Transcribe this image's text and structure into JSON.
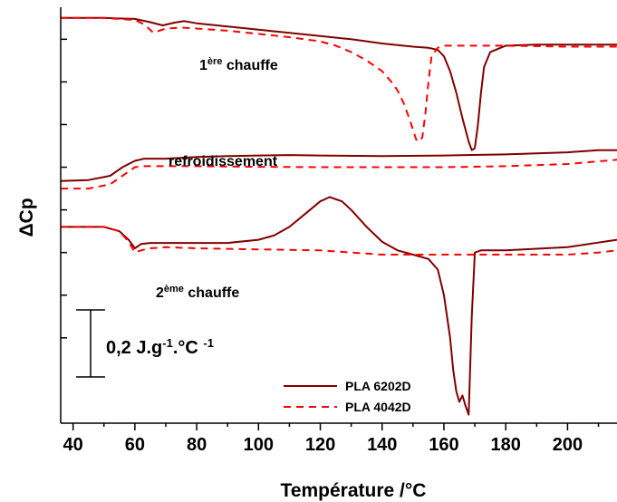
{
  "chart_data": {
    "type": "line",
    "xlabel": "Température /°C",
    "ylabel": "ΔCp",
    "xlim": [
      36,
      216
    ],
    "x_ticks": [
      40,
      60,
      80,
      100,
      120,
      140,
      160,
      180,
      200
    ],
    "y_units": "J.g-1.°C-1 (relative, stacked curves)",
    "ylim": [
      -1.7,
      0.25
    ],
    "y_tick_values": [
      0.1,
      -0.1,
      -0.3,
      -0.5,
      -0.7,
      -0.9,
      -1.1,
      -1.3
    ],
    "y_tick_labels_shown": false,
    "grid": false,
    "legend_position": "bottom-right",
    "scale_bar": {
      "label": "0,2 J.g-1.°C -1",
      "value": 0.2
    },
    "annotations": {
      "first_heating": "1ère chauffe",
      "cooling": "refroidissement",
      "second_heating": "2ème chauffe"
    },
    "series": [
      {
        "name": "PLA 6202D",
        "style": "solid",
        "color": "#800000",
        "segments": [
          {
            "label": "1ère chauffe",
            "x": [
              36,
              50,
              60,
              65,
              69,
              73,
              76,
              80,
              90,
              100,
              110,
              120,
              130,
              140,
              150,
              155,
              158,
              160,
              162,
              164,
              166,
              168,
              169,
              170,
              171,
              172,
              173,
              175,
              180,
              190,
              200,
              216
            ],
            "y": [
              0.2,
              0.2,
              0.195,
              0.18,
              0.165,
              0.178,
              0.185,
              0.175,
              0.16,
              0.145,
              0.13,
              0.115,
              0.1,
              0.08,
              0.065,
              0.06,
              0.05,
              0.02,
              -0.05,
              -0.15,
              -0.27,
              -0.38,
              -0.42,
              -0.41,
              -0.3,
              -0.15,
              -0.03,
              0.04,
              0.07,
              0.075,
              0.075,
              0.075
            ]
          },
          {
            "label": "refroidissement",
            "x": [
              36,
              45,
              52,
              56,
              60,
              63,
              70,
              80,
              90,
              100,
              110,
              120,
              140,
              160,
              180,
              190,
              200,
              210,
              216
            ],
            "y": [
              -0.565,
              -0.56,
              -0.54,
              -0.5,
              -0.47,
              -0.46,
              -0.46,
              -0.452,
              -0.448,
              -0.445,
              -0.443,
              -0.445,
              -0.448,
              -0.445,
              -0.44,
              -0.435,
              -0.43,
              -0.42,
              -0.42
            ]
          },
          {
            "label": "2ème chauffe",
            "x": [
              36,
              50,
              55,
              58,
              60,
              62,
              65,
              70,
              80,
              90,
              100,
              105,
              110,
              115,
              120,
              123,
              127,
              130,
              135,
              140,
              145,
              150,
              155,
              158,
              160,
              162,
              163,
              164,
              165,
              166,
              167,
              168,
              169,
              170,
              172,
              180,
              200,
              216
            ],
            "y": [
              -0.78,
              -0.78,
              -0.8,
              -0.84,
              -0.88,
              -0.86,
              -0.855,
              -0.855,
              -0.855,
              -0.855,
              -0.84,
              -0.82,
              -0.78,
              -0.72,
              -0.66,
              -0.64,
              -0.66,
              -0.7,
              -0.78,
              -0.85,
              -0.89,
              -0.91,
              -0.93,
              -0.98,
              -1.1,
              -1.3,
              -1.45,
              -1.55,
              -1.6,
              -1.57,
              -1.62,
              -1.66,
              -1.2,
              -0.9,
              -0.89,
              -0.89,
              -0.875,
              -0.84
            ]
          }
        ]
      },
      {
        "name": "PLA 4042D",
        "style": "dashed",
        "color": "#ff0000",
        "segments": [
          {
            "label": "1ère chauffe",
            "x": [
              36,
              50,
              60,
              63,
              66,
              70,
              75,
              80,
              90,
              100,
              110,
              120,
              125,
              130,
              135,
              140,
              143,
              145,
              147,
              149,
              151,
              152,
              153,
              154,
              155,
              156,
              158,
              160,
              170,
              180,
              200,
              216
            ],
            "y": [
              0.2,
              0.2,
              0.19,
              0.17,
              0.13,
              0.15,
              0.155,
              0.15,
              0.14,
              0.125,
              0.11,
              0.09,
              0.07,
              0.04,
              0.0,
              -0.05,
              -0.1,
              -0.14,
              -0.2,
              -0.28,
              -0.37,
              -0.38,
              -0.36,
              -0.25,
              -0.1,
              0.02,
              0.06,
              0.07,
              0.07,
              0.07,
              0.065,
              0.065
            ]
          },
          {
            "label": "refroidissement",
            "x": [
              36,
              45,
              52,
              56,
              60,
              63,
              70,
              80,
              100,
              120,
              140,
              160,
              180,
              200,
              216
            ],
            "y": [
              -0.6,
              -0.6,
              -0.58,
              -0.54,
              -0.5,
              -0.495,
              -0.495,
              -0.495,
              -0.498,
              -0.5,
              -0.5,
              -0.5,
              -0.495,
              -0.485,
              -0.465
            ]
          },
          {
            "label": "2ème chauffe",
            "x": [
              36,
              50,
              55,
              58,
              60,
              62,
              65,
              70,
              80,
              100,
              120,
              140,
              160,
              180,
              200,
              210,
              216
            ],
            "y": [
              -0.78,
              -0.78,
              -0.8,
              -0.85,
              -0.9,
              -0.89,
              -0.88,
              -0.875,
              -0.88,
              -0.885,
              -0.89,
              -0.91,
              -0.91,
              -0.91,
              -0.91,
              -0.9,
              -0.89
            ]
          }
        ]
      }
    ]
  }
}
